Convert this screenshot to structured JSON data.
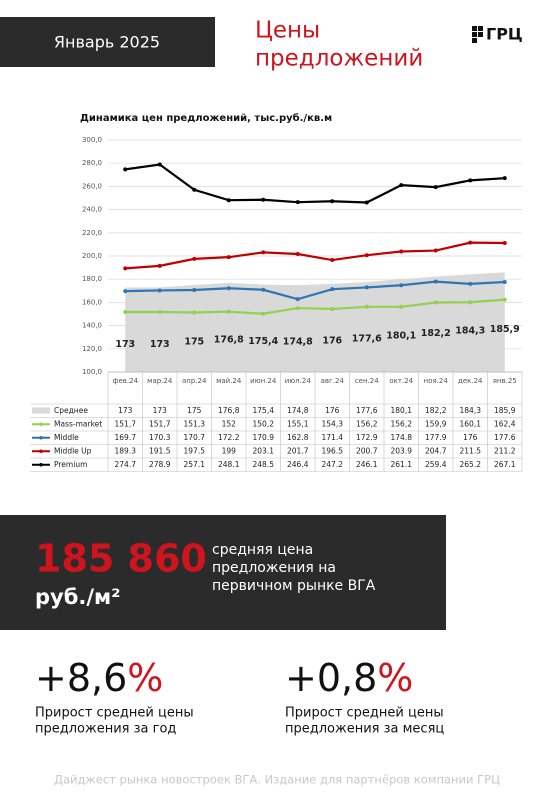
{
  "header": {
    "date": "Январь 2025",
    "title": [
      "Цены",
      "предложений"
    ],
    "logo": "ГРЦ"
  },
  "chart_data": {
    "type": "line",
    "title": "Динамика цен предложений, тыс.руб./кв.м",
    "categories": [
      "фев.24",
      "мар.24",
      "апр.24",
      "май.24",
      "июн.24",
      "июл.24",
      "авг.24",
      "сен.24",
      "окт.24",
      "ноя.24",
      "дек.24",
      "янв.25"
    ],
    "ylim": [
      100,
      300
    ],
    "yticks": [
      {
        "value": 100,
        "label": "100,0"
      },
      {
        "value": 120,
        "label": "120,0"
      },
      {
        "value": 140,
        "label": "140,0"
      },
      {
        "value": 160,
        "label": "160,0"
      },
      {
        "value": 180,
        "label": "180,0"
      },
      {
        "value": 200,
        "label": "200,0"
      },
      {
        "value": 220,
        "label": "220,0"
      },
      {
        "value": 240,
        "label": "240,0"
      },
      {
        "value": 260,
        "label": "260,0"
      },
      {
        "value": 280,
        "label": "280,0"
      },
      {
        "value": 300,
        "label": "300,0"
      }
    ],
    "grid": true,
    "series": [
      {
        "name": "Среднее",
        "type": "area",
        "color": "#d9d9d9",
        "values": [
          173,
          173,
          175,
          176.8,
          175.4,
          174.8,
          176,
          177.6,
          180.1,
          182.2,
          184.3,
          185.9
        ],
        "value_labels": [
          "173",
          "173",
          "175",
          "176,8",
          "175,4",
          "174,8",
          "176",
          "177,6",
          "180,1",
          "182,2",
          "184,3",
          "185,9"
        ]
      },
      {
        "name": "Mass-market",
        "type": "line",
        "color": "#92d050",
        "values": [
          151.7,
          151.7,
          151.3,
          152,
          150.2,
          155.1,
          154.3,
          156.2,
          156.2,
          159.9,
          160.1,
          162.4
        ],
        "value_labels": [
          "151,7",
          "151,7",
          "151,3",
          "152",
          "150,2",
          "155,1",
          "154,3",
          "156,2",
          "156,2",
          "159,9",
          "160,1",
          "162,4"
        ]
      },
      {
        "name": "Middle",
        "type": "line",
        "color": "#2e75b6",
        "values": [
          169.7,
          170.3,
          170.7,
          172.2,
          170.9,
          162.8,
          171.4,
          172.9,
          174.8,
          177.9,
          176,
          177.6
        ],
        "value_labels": [
          "169.7",
          "170.3",
          "170.7",
          "172.2",
          "170.9",
          "162.8",
          "171.4",
          "172.9",
          "174.8",
          "177.9",
          "176",
          "177.6"
        ]
      },
      {
        "name": "Middle Up",
        "type": "line",
        "color": "#c00000",
        "values": [
          189.3,
          191.5,
          197.5,
          199,
          203.1,
          201.7,
          196.5,
          200.7,
          203.9,
          204.7,
          211.5,
          211.2
        ],
        "value_labels": [
          "189.3",
          "191.5",
          "197.5",
          "199",
          "203.1",
          "201.7",
          "196.5",
          "200.7",
          "203.9",
          "204.7",
          "211.5",
          "211.2"
        ]
      },
      {
        "name": "Premium",
        "type": "line",
        "color": "#000000",
        "values": [
          274.7,
          278.9,
          257.1,
          248.1,
          248.5,
          246.4,
          247.2,
          246.1,
          261.1,
          259.4,
          265.2,
          267.1
        ],
        "value_labels": [
          "274.7",
          "278.9",
          "257.1",
          "248.1",
          "248.5",
          "246.4",
          "247.2",
          "246.1",
          "261.1",
          "259.4",
          "265.2",
          "267.1"
        ]
      }
    ]
  },
  "summary": {
    "value": "185 860",
    "unit": "руб./м²",
    "description": [
      "средняя цена",
      "предложения на",
      "первичном рынке ВГА"
    ]
  },
  "stats": [
    {
      "value": "+8,6",
      "unit": "%",
      "label": [
        "Прирост средней цены",
        "предложения за год"
      ]
    },
    {
      "value": "+0,8",
      "unit": "%",
      "label": [
        "Прирост средней цены",
        "предложения за месяц"
      ]
    }
  ],
  "footer": "Дайджест рынка новостроек ВГА. Издание для партнёров компании ГРЦ"
}
